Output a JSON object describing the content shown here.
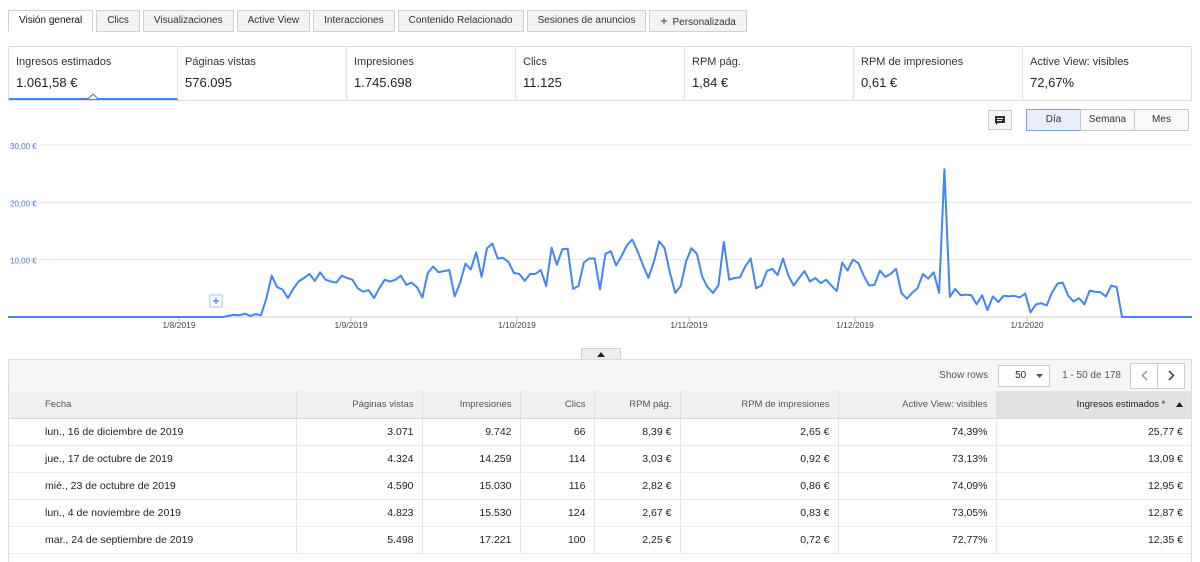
{
  "tabs": [
    {
      "label": "Visión general",
      "active": true
    },
    {
      "label": "Clics"
    },
    {
      "label": "Visualizaciones"
    },
    {
      "label": "Active View"
    },
    {
      "label": "Interacciones"
    },
    {
      "label": "Contenido Relacionado"
    },
    {
      "label": "Sesiones de anuncios"
    },
    {
      "label": "Personalizada",
      "icon": "plus-icon"
    }
  ],
  "metrics": [
    {
      "label": "Ingresos estimados",
      "value": "1.061,58 €",
      "active": true
    },
    {
      "label": "Páginas vistas",
      "value": "576.095"
    },
    {
      "label": "Impresiones",
      "value": "1.745.698"
    },
    {
      "label": "Clics",
      "value": "11.125"
    },
    {
      "label": "RPM pág.",
      "value": "1,84 €"
    },
    {
      "label": "RPM de impresiones",
      "value": "0,61 €"
    },
    {
      "label": "Active View: visibles",
      "value": "72,67%"
    }
  ],
  "period_buttons": [
    {
      "label": "Día",
      "active": true
    },
    {
      "label": "Semana"
    },
    {
      "label": "Mes"
    }
  ],
  "colors": {
    "accent": "#4285f4",
    "axis_label": "#4a7fd4"
  },
  "chart_data": {
    "type": "line",
    "title": "",
    "xlabel": "",
    "ylabel": "",
    "ylim": [
      0,
      30
    ],
    "y_ticks": [
      "10,00 €",
      "20,00 €",
      "30,00 €"
    ],
    "x_ticks": [
      "1/8/2019",
      "1/9/2019",
      "1/10/2019",
      "1/11/2019",
      "1/12/2019",
      "1/1/2020"
    ],
    "grid": true,
    "series": [
      {
        "values": [
          0,
          0,
          0,
          0,
          0,
          0,
          0,
          0,
          0,
          0,
          0,
          0,
          0,
          0,
          0,
          0,
          0,
          0,
          0,
          0,
          0,
          0,
          0,
          0,
          0,
          0,
          0,
          0,
          0,
          0,
          0,
          0,
          0,
          0,
          0,
          0,
          0,
          0,
          0,
          0,
          0,
          0.2,
          0.4,
          0.3,
          0.6,
          0.2,
          0.5,
          0.3,
          3.2,
          7.2,
          5.2,
          4.8,
          3.3,
          4.9,
          6.2,
          6.8,
          7.5,
          6.3,
          7.8,
          6.5,
          6.2,
          6.0,
          7.2,
          6.8,
          6.5,
          5.0,
          4.4,
          4.7,
          3.3,
          5.0,
          6.5,
          6.2,
          6.5,
          7.2,
          5.6,
          6.0,
          5.2,
          3.4,
          7.7,
          8.8,
          7.8,
          8.0,
          8.2,
          3.6,
          6.0,
          9.3,
          8.3,
          11.3,
          7.0,
          12.0,
          12.8,
          10.2,
          10.3,
          9.6,
          7.7,
          7.5,
          6.3,
          7.5,
          7.5,
          8.2,
          5.4,
          12.1,
          9.1,
          11.8,
          11.9,
          4.9,
          5.4,
          9.5,
          10.2,
          10.2,
          4.8,
          11.0,
          11.5,
          9.0,
          10.6,
          12.5,
          13.5,
          11.4,
          9.0,
          6.8,
          9.6,
          13.2,
          12.0,
          7.7,
          4.2,
          5.4,
          9.7,
          12.0,
          11.0,
          7.0,
          5.2,
          4.2,
          5.5,
          13.1,
          6.5,
          6.8,
          6.9,
          8.8,
          10.2,
          5.0,
          5.5,
          8.0,
          8.4,
          7.3,
          10.2,
          7.2,
          5.5,
          6.8,
          8.0,
          6.2,
          6.8,
          5.9,
          6.5,
          5.5,
          4.5,
          9.5,
          8.1,
          10.0,
          9.4,
          7.2,
          5.5,
          5.6,
          8.1,
          7.0,
          7.5,
          8.4,
          4.2,
          3.2,
          4.2,
          5.0,
          7.5,
          6.7,
          7.8,
          4.2,
          25.77,
          3.5,
          4.9,
          3.8,
          3.9,
          3.8,
          2.2,
          3.8,
          1.2,
          3.6,
          2.6,
          3.7,
          3.6,
          3.7,
          3.4,
          4.1,
          0.8,
          2.2,
          2.4,
          2.0,
          4.3,
          5.8,
          6.0,
          3.7,
          2.7,
          3.3,
          2.2,
          4.6,
          4.4,
          4.3,
          3.6,
          5.5,
          5.2,
          0,
          0,
          0,
          0,
          0,
          0,
          0,
          0,
          0,
          0,
          0,
          0,
          0,
          0
        ]
      }
    ]
  },
  "table": {
    "pager": {
      "show_rows_label": "Show rows",
      "rows_value": "50",
      "range_label": "1 - 50 de 178"
    },
    "columns": [
      "Fecha",
      "Páginas vistas",
      "Impresiones",
      "Clics",
      "RPM pág.",
      "RPM de impresiones",
      "Active View: visibles",
      "Ingresos estimados *"
    ],
    "sorted_column": 7,
    "rows": [
      [
        "lun., 16 de diciembre de 2019",
        "3.071",
        "9.742",
        "66",
        "8,39 €",
        "2,65 €",
        "74,39%",
        "25,77 €"
      ],
      [
        "jue., 17 de octubre de 2019",
        "4.324",
        "14.259",
        "114",
        "3,03 €",
        "0,92 €",
        "73,13%",
        "13,09 €"
      ],
      [
        "mié., 23 de octubre de 2019",
        "4.590",
        "15.030",
        "116",
        "2,82 €",
        "0,86 €",
        "74,09%",
        "12,95 €"
      ],
      [
        "lun., 4 de noviembre de 2019",
        "4.823",
        "15.530",
        "124",
        "2,67 €",
        "0,83 €",
        "73,05%",
        "12,87 €"
      ],
      [
        "mar., 24 de septiembre de 2019",
        "5.498",
        "17.221",
        "100",
        "2,25 €",
        "0,72 €",
        "72,77%",
        "12,35 €"
      ]
    ]
  }
}
